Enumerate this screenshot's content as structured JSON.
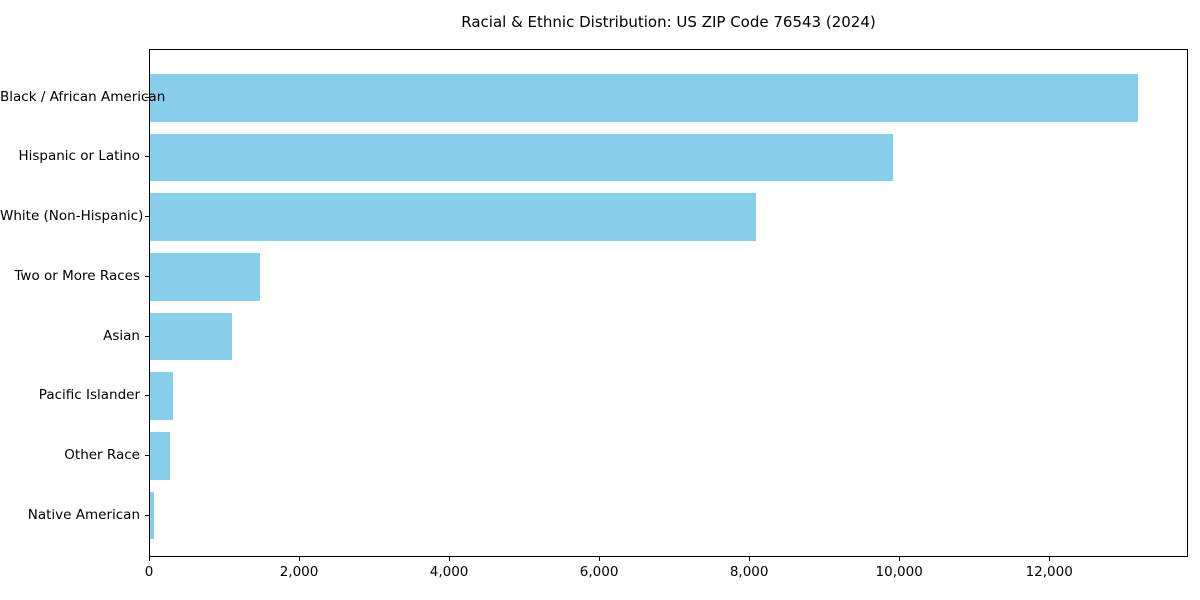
{
  "chart_data": {
    "type": "bar",
    "orientation": "horizontal",
    "title": "Racial & Ethnic Distribution: US ZIP Code 76543 (2024)",
    "categories": [
      "Black / African American",
      "Hispanic or Latino",
      "White (Non-Hispanic)",
      "Two or More Races",
      "Asian",
      "Pacific Islander",
      "Other Race",
      "Native American"
    ],
    "values": [
      13170,
      9910,
      8080,
      1460,
      1090,
      300,
      270,
      55
    ],
    "xlabel": "",
    "ylabel": "",
    "xlim": [
      0,
      13850
    ],
    "x_ticks": [
      0,
      2000,
      4000,
      6000,
      8000,
      10000,
      12000
    ],
    "x_tick_labels": [
      "0",
      "2,000",
      "4,000",
      "6,000",
      "8,000",
      "10,000",
      "12,000"
    ],
    "bar_color": "#87CEEB",
    "background_color": "#ffffff",
    "grid": false,
    "legend": "none"
  }
}
